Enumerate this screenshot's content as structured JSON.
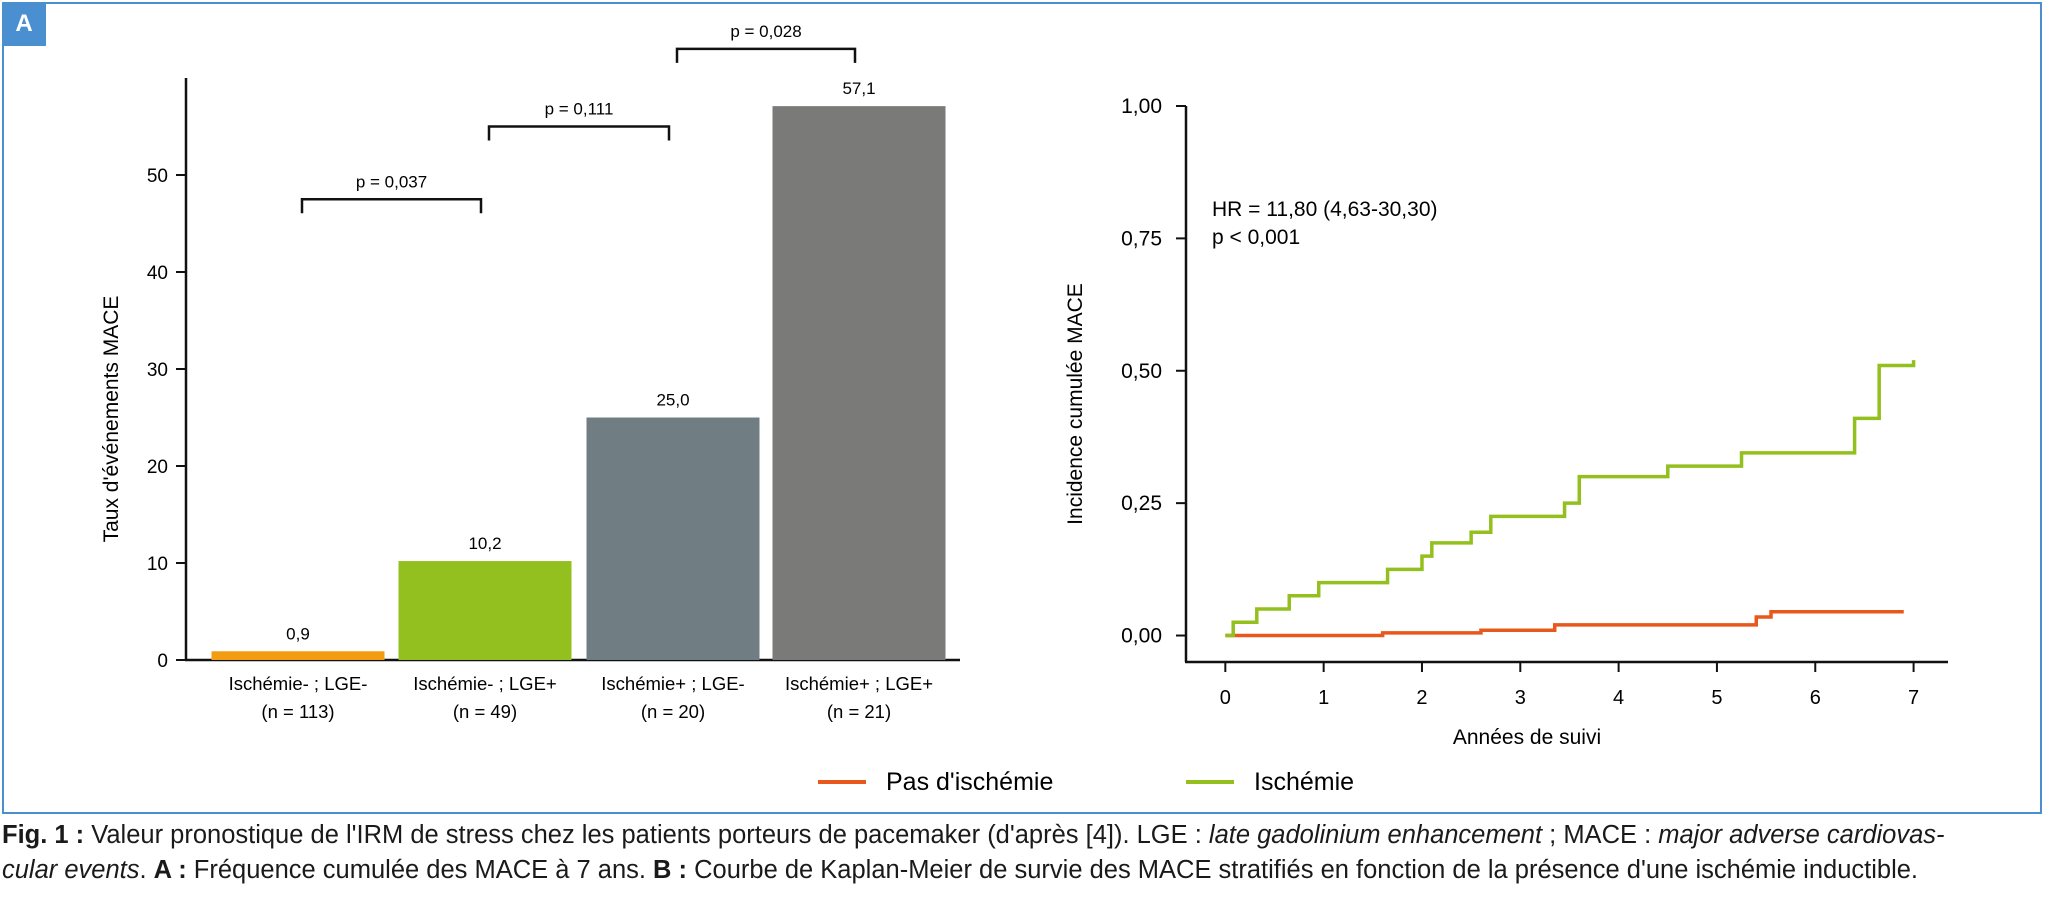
{
  "panel_label": "A",
  "colors": {
    "frame": "#4a90d0",
    "bar_1": "#f39c12",
    "bar_2": "#93c01f",
    "bar_3": "#707e84",
    "bar_4": "#7a7a78",
    "no_ischemia": "#e8581c",
    "ischemia": "#93c01f"
  },
  "chart_data": [
    {
      "type": "bar",
      "ylabel": "Taux d'événements  MACE",
      "ylim": [
        0,
        60
      ],
      "yticks": [
        0,
        10,
        20,
        30,
        40,
        50
      ],
      "categories": [
        [
          "Ischémie- ; LGE-",
          "(n = 113)"
        ],
        [
          "Ischémie- ; LGE+",
          "(n = 49)"
        ],
        [
          "Ischémie+ ; LGE-",
          "(n = 20)"
        ],
        [
          "Ischémie+ ; LGE+",
          "(n = 21)"
        ]
      ],
      "values": [
        0.9,
        10.2,
        25.0,
        57.1
      ],
      "value_labels": [
        "0,9",
        "10,2",
        "25,0",
        "57,1"
      ],
      "comparisons": [
        {
          "from": 0,
          "to": 1,
          "label": "p = 0,037",
          "level": 47.5
        },
        {
          "from": 1,
          "to": 2,
          "label": "p = 0,111",
          "level": 55
        },
        {
          "from": 2,
          "to": 3,
          "label": "p = 0,028",
          "level": 63
        }
      ]
    },
    {
      "type": "line",
      "step": true,
      "xlabel": "Années de suivi",
      "ylabel": "Incidence cumulée MACE",
      "xlim": [
        -0.4,
        7.35
      ],
      "ylim": [
        -0.05,
        1.0
      ],
      "xticks": [
        0,
        1,
        2,
        3,
        4,
        5,
        6,
        7
      ],
      "yticks": [
        0,
        0.25,
        0.5,
        0.75,
        1.0
      ],
      "ytick_labels": [
        "0,00",
        "0,25",
        "0,50",
        "0,75",
        "1,00"
      ],
      "annotation": [
        "HR = 11,80 (4,63-30,30)",
        "p < 0,001"
      ],
      "series": [
        {
          "name": "Pas d'ischémie",
          "x": [
            0,
            1.6,
            2.6,
            3.35,
            5.4,
            5.55,
            6.9
          ],
          "y": [
            0,
            0.005,
            0.01,
            0.02,
            0.035,
            0.045,
            0.045
          ]
        },
        {
          "name": "Ischémie",
          "x": [
            0,
            0.08,
            0.32,
            0.65,
            0.95,
            1.65,
            2.0,
            2.1,
            2.5,
            2.7,
            3.45,
            3.6,
            4.5,
            5.25,
            6.4,
            6.65,
            7.0
          ],
          "y": [
            0,
            0.025,
            0.05,
            0.075,
            0.1,
            0.125,
            0.15,
            0.175,
            0.195,
            0.225,
            0.25,
            0.3,
            0.32,
            0.345,
            0.41,
            0.51,
            0.52
          ]
        }
      ]
    }
  ],
  "caption": {
    "fig_label": "Fig. 1 :",
    "line1_text": " Valeur pronostique de l'IRM de stress chez les patients porteurs de pacemaker (d'après [4]). LGE : ",
    "line1_italic": "late gadolinium enhancement",
    "line1_mid": " ; MACE : ",
    "line1_italic2": "major adverse cardiovas-",
    "line2_italic": "cular events",
    "line2_text": ". ",
    "a_label": "A :",
    "a_text": " Fréquence cumulée des MACE à 7 ans. ",
    "b_label": "B :",
    "b_text": " Courbe de Kaplan-Meier de survie des MACE stratifiés en fonction de la présence d'une ischémie inductible."
  }
}
